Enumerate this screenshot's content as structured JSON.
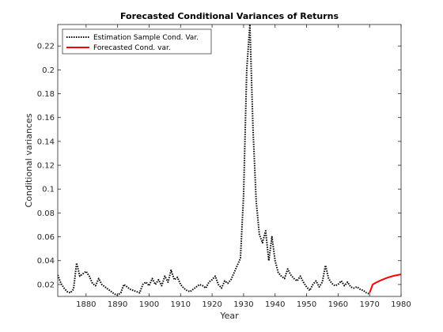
{
  "chart_data": {
    "type": "line",
    "title": "Forecasted Conditional Variances of Returns",
    "xlabel": "Year",
    "ylabel": "Conditional variances",
    "xlim": [
      1871,
      1980
    ],
    "ylim": [
      0.01,
      0.238
    ],
    "x_ticks": [
      1880,
      1890,
      1900,
      1910,
      1920,
      1930,
      1940,
      1950,
      1960,
      1970,
      1980
    ],
    "x_tick_labels": [
      "1880",
      "1890",
      "1900",
      "1910",
      "1920",
      "1930",
      "1940",
      "1950",
      "1960",
      "1970",
      "1980"
    ],
    "y_ticks": [
      0.02,
      0.04,
      0.06,
      0.08,
      0.1,
      0.12,
      0.14,
      0.16,
      0.18,
      0.2,
      0.22
    ],
    "y_tick_labels": [
      "0.02",
      "0.04",
      "0.06",
      "0.08",
      "0.1",
      "0.12",
      "0.14",
      "0.16",
      "0.18",
      "0.2",
      "0.22"
    ],
    "grid": false,
    "legend_position": "top-left",
    "series": [
      {
        "name": "Estimation Sample Cond. Var.",
        "color": "#000000",
        "style": "dotted",
        "x": [
          1871,
          1872,
          1873,
          1874,
          1875,
          1876,
          1877,
          1878,
          1879,
          1880,
          1881,
          1882,
          1883,
          1884,
          1885,
          1886,
          1887,
          1888,
          1889,
          1890,
          1891,
          1892,
          1893,
          1894,
          1895,
          1896,
          1897,
          1898,
          1899,
          1900,
          1901,
          1902,
          1903,
          1904,
          1905,
          1906,
          1907,
          1908,
          1909,
          1910,
          1911,
          1912,
          1913,
          1914,
          1915,
          1916,
          1917,
          1918,
          1919,
          1920,
          1921,
          1922,
          1923,
          1924,
          1925,
          1926,
          1927,
          1928,
          1929,
          1930,
          1931,
          1932,
          1933,
          1934,
          1935,
          1936,
          1937,
          1938,
          1939,
          1940,
          1941,
          1942,
          1943,
          1944,
          1945,
          1946,
          1947,
          1948,
          1949,
          1950,
          1951,
          1952,
          1953,
          1954,
          1955,
          1956,
          1957,
          1958,
          1959,
          1960,
          1961,
          1962,
          1963,
          1964,
          1965,
          1966,
          1967,
          1968,
          1969,
          1970
        ],
        "values": [
          0.028,
          0.021,
          0.017,
          0.014,
          0.013,
          0.016,
          0.038,
          0.027,
          0.029,
          0.031,
          0.027,
          0.021,
          0.019,
          0.025,
          0.02,
          0.018,
          0.016,
          0.014,
          0.012,
          0.011,
          0.013,
          0.02,
          0.018,
          0.016,
          0.015,
          0.014,
          0.013,
          0.02,
          0.022,
          0.019,
          0.025,
          0.02,
          0.024,
          0.019,
          0.027,
          0.022,
          0.032,
          0.024,
          0.026,
          0.02,
          0.017,
          0.015,
          0.014,
          0.016,
          0.018,
          0.02,
          0.019,
          0.017,
          0.022,
          0.024,
          0.027,
          0.02,
          0.017,
          0.023,
          0.021,
          0.024,
          0.03,
          0.036,
          0.042,
          0.095,
          0.2,
          0.238,
          0.15,
          0.09,
          0.062,
          0.055,
          0.065,
          0.04,
          0.06,
          0.04,
          0.03,
          0.027,
          0.025,
          0.033,
          0.028,
          0.025,
          0.023,
          0.027,
          0.022,
          0.018,
          0.015,
          0.02,
          0.023,
          0.018,
          0.022,
          0.036,
          0.025,
          0.021,
          0.019,
          0.02,
          0.023,
          0.019,
          0.022,
          0.018,
          0.017,
          0.018,
          0.016,
          0.015,
          0.013,
          0.012
        ]
      },
      {
        "name": "Forecasted Cond. var.",
        "color": "#ff0000",
        "style": "solid",
        "x": [
          1970,
          1971,
          1972,
          1973,
          1974,
          1975,
          1976,
          1977,
          1978,
          1979,
          1980
        ],
        "values": [
          0.013,
          0.02,
          0.0215,
          0.0228,
          0.024,
          0.025,
          0.026,
          0.0268,
          0.0275,
          0.028,
          0.0285
        ]
      }
    ]
  }
}
